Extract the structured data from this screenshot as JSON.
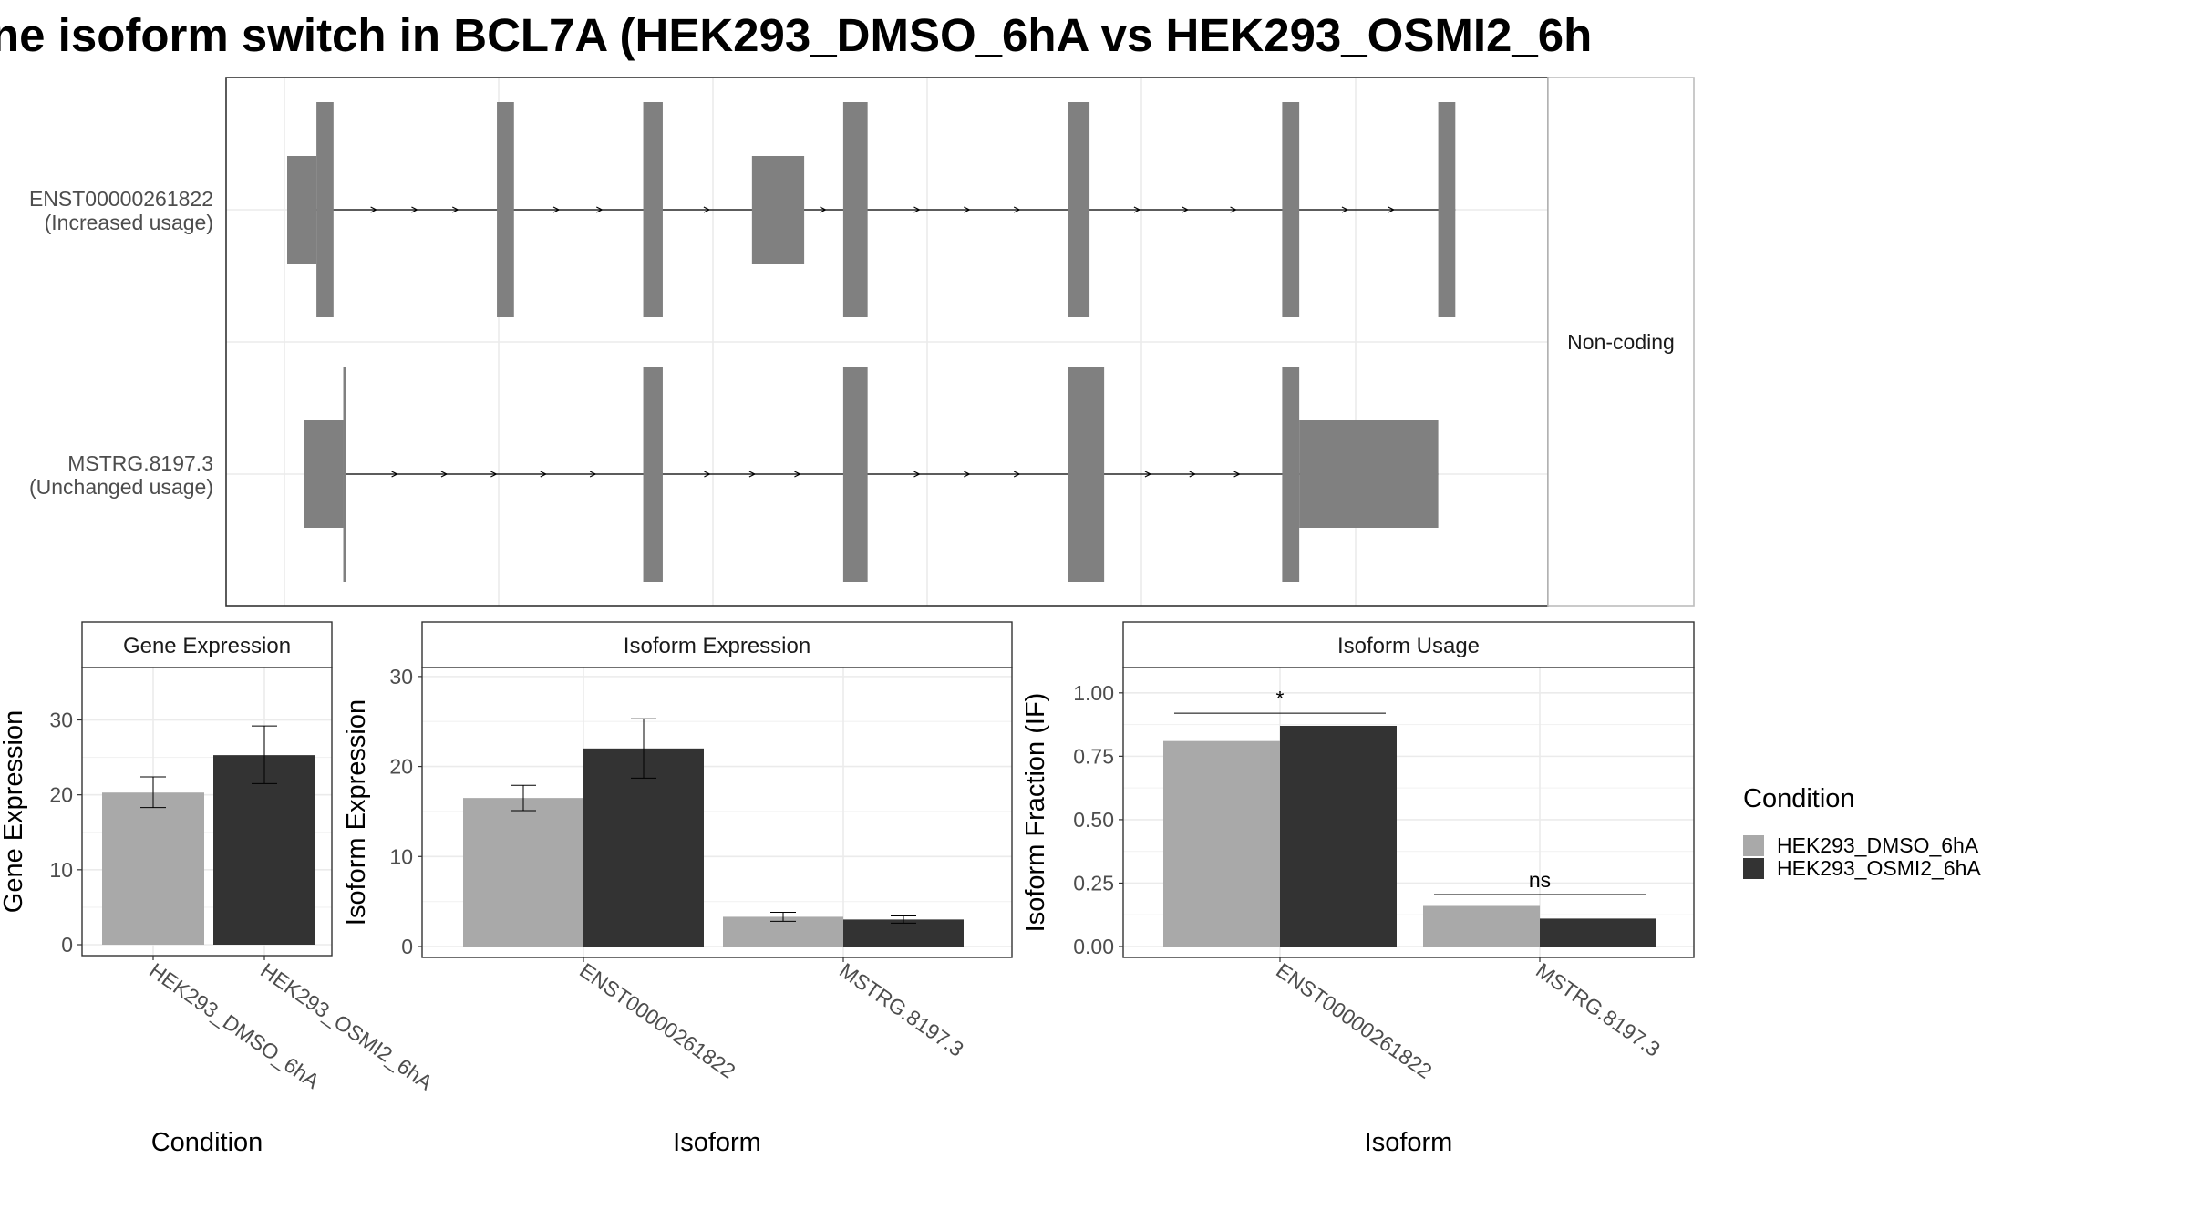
{
  "title": "ne isoform switch in BCL7A (HEK293_DMSO_6hA vs HEK293_OSMI2_6h",
  "colors": {
    "exon": "#808080",
    "dmso": "#a9a9a9",
    "osmi": "#333333",
    "grid": "#ebebeb",
    "panel_border": "#333333"
  },
  "structure": {
    "strip_label": "Non-coding",
    "transcripts": [
      {
        "id": "ENST00000261822",
        "label_line1": "ENST00000261822",
        "label_line2": "(Increased usage)",
        "utr_exons": [
          [
            0.0,
            0.6
          ],
          [
            9.53,
            10.6
          ]
        ],
        "cds_exons": [
          [
            0.6,
            0.95
          ],
          [
            4.3,
            4.65
          ],
          [
            7.3,
            7.7
          ],
          [
            11.4,
            11.9
          ],
          [
            16.0,
            16.45
          ],
          [
            20.4,
            20.75
          ],
          [
            23.6,
            23.95
          ]
        ],
        "intron_arrows": 18
      },
      {
        "id": "MSTRG.8197.3",
        "label_line1": "MSTRG.8197.3",
        "label_line2": "(Unchanged usage)",
        "utr_exons": [
          [
            0.35,
            1.15
          ],
          [
            20.75,
            23.6
          ]
        ],
        "cds_exons": [
          [
            1.15,
            1.2
          ],
          [
            7.3,
            7.7
          ],
          [
            11.4,
            11.9
          ],
          [
            16.0,
            16.75
          ],
          [
            20.4,
            20.75
          ]
        ],
        "intron_arrows": 18
      }
    ]
  },
  "chart_data": [
    {
      "type": "bar",
      "panel": "Gene Expression",
      "xlabel": "Condition",
      "ylabel": "Gene Expression",
      "ylim": [
        0,
        37
      ],
      "yticks": [
        0,
        10,
        20,
        30
      ],
      "categories": [
        "HEK293_DMSO_6hA",
        "HEK293_OSMI2_6hA"
      ],
      "values": [
        20.3,
        25.3
      ],
      "error_low": [
        18.3,
        21.5
      ],
      "error_high": [
        22.4,
        29.2
      ]
    },
    {
      "type": "bar",
      "panel": "Isoform Expression",
      "xlabel": "Isoform",
      "ylabel": "Isoform Expression",
      "ylim": [
        0,
        31
      ],
      "yticks": [
        0,
        10,
        20,
        30
      ],
      "categories": [
        "ENST00000261822",
        "MSTRG.8197.3"
      ],
      "series": [
        {
          "name": "HEK293_DMSO_6hA",
          "values": [
            16.5,
            3.3
          ],
          "error_low": [
            15.1,
            2.8
          ],
          "error_high": [
            17.9,
            3.8
          ]
        },
        {
          "name": "HEK293_OSMI2_6hA",
          "values": [
            22.0,
            3.0
          ],
          "error_low": [
            18.7,
            2.6
          ],
          "error_high": [
            25.3,
            3.4
          ]
        }
      ]
    },
    {
      "type": "bar",
      "panel": "Isoform Usage",
      "xlabel": "Isoform",
      "ylabel": "Isoform Fraction (IF)",
      "ylim": [
        0,
        1.1
      ],
      "yticks": [
        0.0,
        0.25,
        0.5,
        0.75,
        1.0
      ],
      "ytick_labels": [
        "0.00",
        "0.25",
        "0.50",
        "0.75",
        "1.00"
      ],
      "categories": [
        "ENST00000261822",
        "MSTRG.8197.3"
      ],
      "series": [
        {
          "name": "HEK293_DMSO_6hA",
          "values": [
            0.81,
            0.16
          ]
        },
        {
          "name": "HEK293_OSMI2_6hA",
          "values": [
            0.87,
            0.11
          ]
        }
      ],
      "significance": [
        "*",
        "ns"
      ],
      "significance_levels": [
        0.92,
        0.205
      ]
    }
  ],
  "legend": {
    "title": "Condition",
    "items": [
      {
        "label": "HEK293_DMSO_6hA",
        "color": "#a9a9a9"
      },
      {
        "label": "HEK293_OSMI2_6hA",
        "color": "#333333"
      }
    ]
  }
}
